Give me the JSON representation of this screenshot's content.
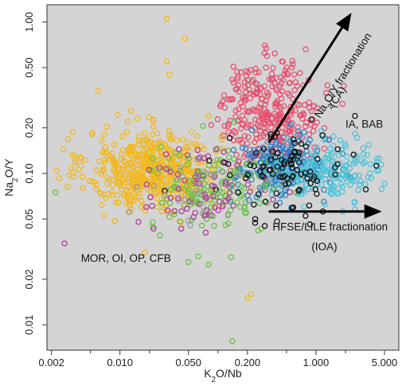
{
  "chart_data": {
    "type": "scatter",
    "x_scale": "log",
    "y_scale": "log",
    "xlim": [
      0.0018,
      7.0
    ],
    "ylim": [
      0.0068,
      1.3
    ],
    "grid": false,
    "background": "#d4d4d4",
    "xlabel": "K₂O/Nb",
    "ylabel": "Na₂O/Y",
    "x_ticks": [
      {
        "value": 0.002,
        "label": "0.002"
      },
      {
        "value": 0.01,
        "label": "0.010"
      },
      {
        "value": 0.05,
        "label": "0.050"
      },
      {
        "value": 0.2,
        "label": "0.200"
      },
      {
        "value": 1.0,
        "label": "1.000"
      },
      {
        "value": 5.0,
        "label": "5.000"
      }
    ],
    "x_minor_ticks": [
      0.005,
      0.02,
      0.1,
      0.5,
      2.0
    ],
    "y_ticks": [
      {
        "value": 0.01,
        "label": "0.01"
      },
      {
        "value": 0.02,
        "label": "0.02"
      },
      {
        "value": 0.05,
        "label": "0.05"
      },
      {
        "value": 0.1,
        "label": "0.10"
      },
      {
        "value": 0.2,
        "label": "0.20"
      },
      {
        "value": 0.5,
        "label": "0.50"
      },
      {
        "value": 1.0,
        "label": "1.00"
      }
    ],
    "annotations": [
      {
        "text": "MOR, OI, OP, CFB",
        "x": 0.004,
        "y": 0.026
      },
      {
        "text": "IA, BAB",
        "x": 2.0,
        "y": 0.2
      },
      {
        "text": "HFSE/LILE fractionation",
        "x": 0.36,
        "y": 0.042
      },
      {
        "text": "(IOA)",
        "x": 0.9,
        "y": 0.031
      }
    ],
    "rotated_annotations": [
      {
        "text": "Na₂O/Y fractionation",
        "x": 1.1,
        "y": 0.23,
        "angle": -58
      },
      {
        "text": "(CA)",
        "x": 1.55,
        "y": 0.27,
        "angle": -58
      }
    ],
    "arrows": [
      {
        "from": [
          0.33,
          0.16
        ],
        "to": [
          2.3,
          1.15
        ]
      },
      {
        "from": [
          0.33,
          0.056
        ],
        "to": [
          4.7,
          0.056
        ]
      }
    ],
    "series": [
      {
        "color": "#f2b81f",
        "center": [
          0.022,
          0.105
        ],
        "spread": [
          0.34,
          0.13
        ],
        "count": 560,
        "extra": [
          [
            0.03,
            1.05
          ],
          [
            0.046,
            0.78
          ],
          [
            0.0035,
            0.12
          ],
          [
            0.0042,
            0.08
          ],
          [
            0.012,
            0.22
          ],
          [
            0.08,
            0.24
          ],
          [
            0.2,
            0.015
          ],
          [
            0.22,
            0.016
          ],
          [
            0.018,
            0.03
          ],
          [
            0.006,
            0.35
          ],
          [
            0.03,
            0.55
          ],
          [
            0.032,
            0.45
          ]
        ]
      },
      {
        "color": "#e8506f",
        "center": [
          0.34,
          0.26
        ],
        "spread": [
          0.26,
          0.16
        ],
        "count": 300,
        "extra": [
          [
            0.38,
            0.62
          ],
          [
            0.5,
            0.5
          ],
          [
            0.45,
            0.55
          ],
          [
            0.3,
            0.7
          ],
          [
            0.6,
            0.45
          ]
        ]
      },
      {
        "color": "#2a83c6",
        "center": [
          0.45,
          0.11
        ],
        "spread": [
          0.24,
          0.1
        ],
        "count": 210,
        "extra": []
      },
      {
        "color": "#4fc3d8",
        "center": [
          1.3,
          0.105
        ],
        "spread": [
          0.28,
          0.1
        ],
        "count": 190,
        "extra": []
      },
      {
        "color": "#6cc04a",
        "center": [
          0.09,
          0.075
        ],
        "spread": [
          0.32,
          0.14
        ],
        "count": 140,
        "extra": [
          [
            0.14,
            0.0078
          ],
          [
            0.08,
            0.025
          ],
          [
            0.05,
            0.026
          ],
          [
            0.0022,
            0.075
          ]
        ]
      },
      {
        "color": "#b03ca0",
        "center": [
          0.07,
          0.085
        ],
        "spread": [
          0.36,
          0.14
        ],
        "count": 75,
        "extra": []
      },
      {
        "color": "#111111",
        "center": [
          0.5,
          0.1
        ],
        "spread": [
          0.3,
          0.13
        ],
        "count": 95,
        "extra": [
          [
            2.5,
            0.24
          ],
          [
            0.24,
            0.05
          ],
          [
            0.3,
            0.045
          ]
        ]
      },
      {
        "color": "#9a9a9a",
        "center": [
          0.06,
          0.08
        ],
        "spread": [
          0.3,
          0.12
        ],
        "count": 30,
        "extra": []
      }
    ]
  }
}
